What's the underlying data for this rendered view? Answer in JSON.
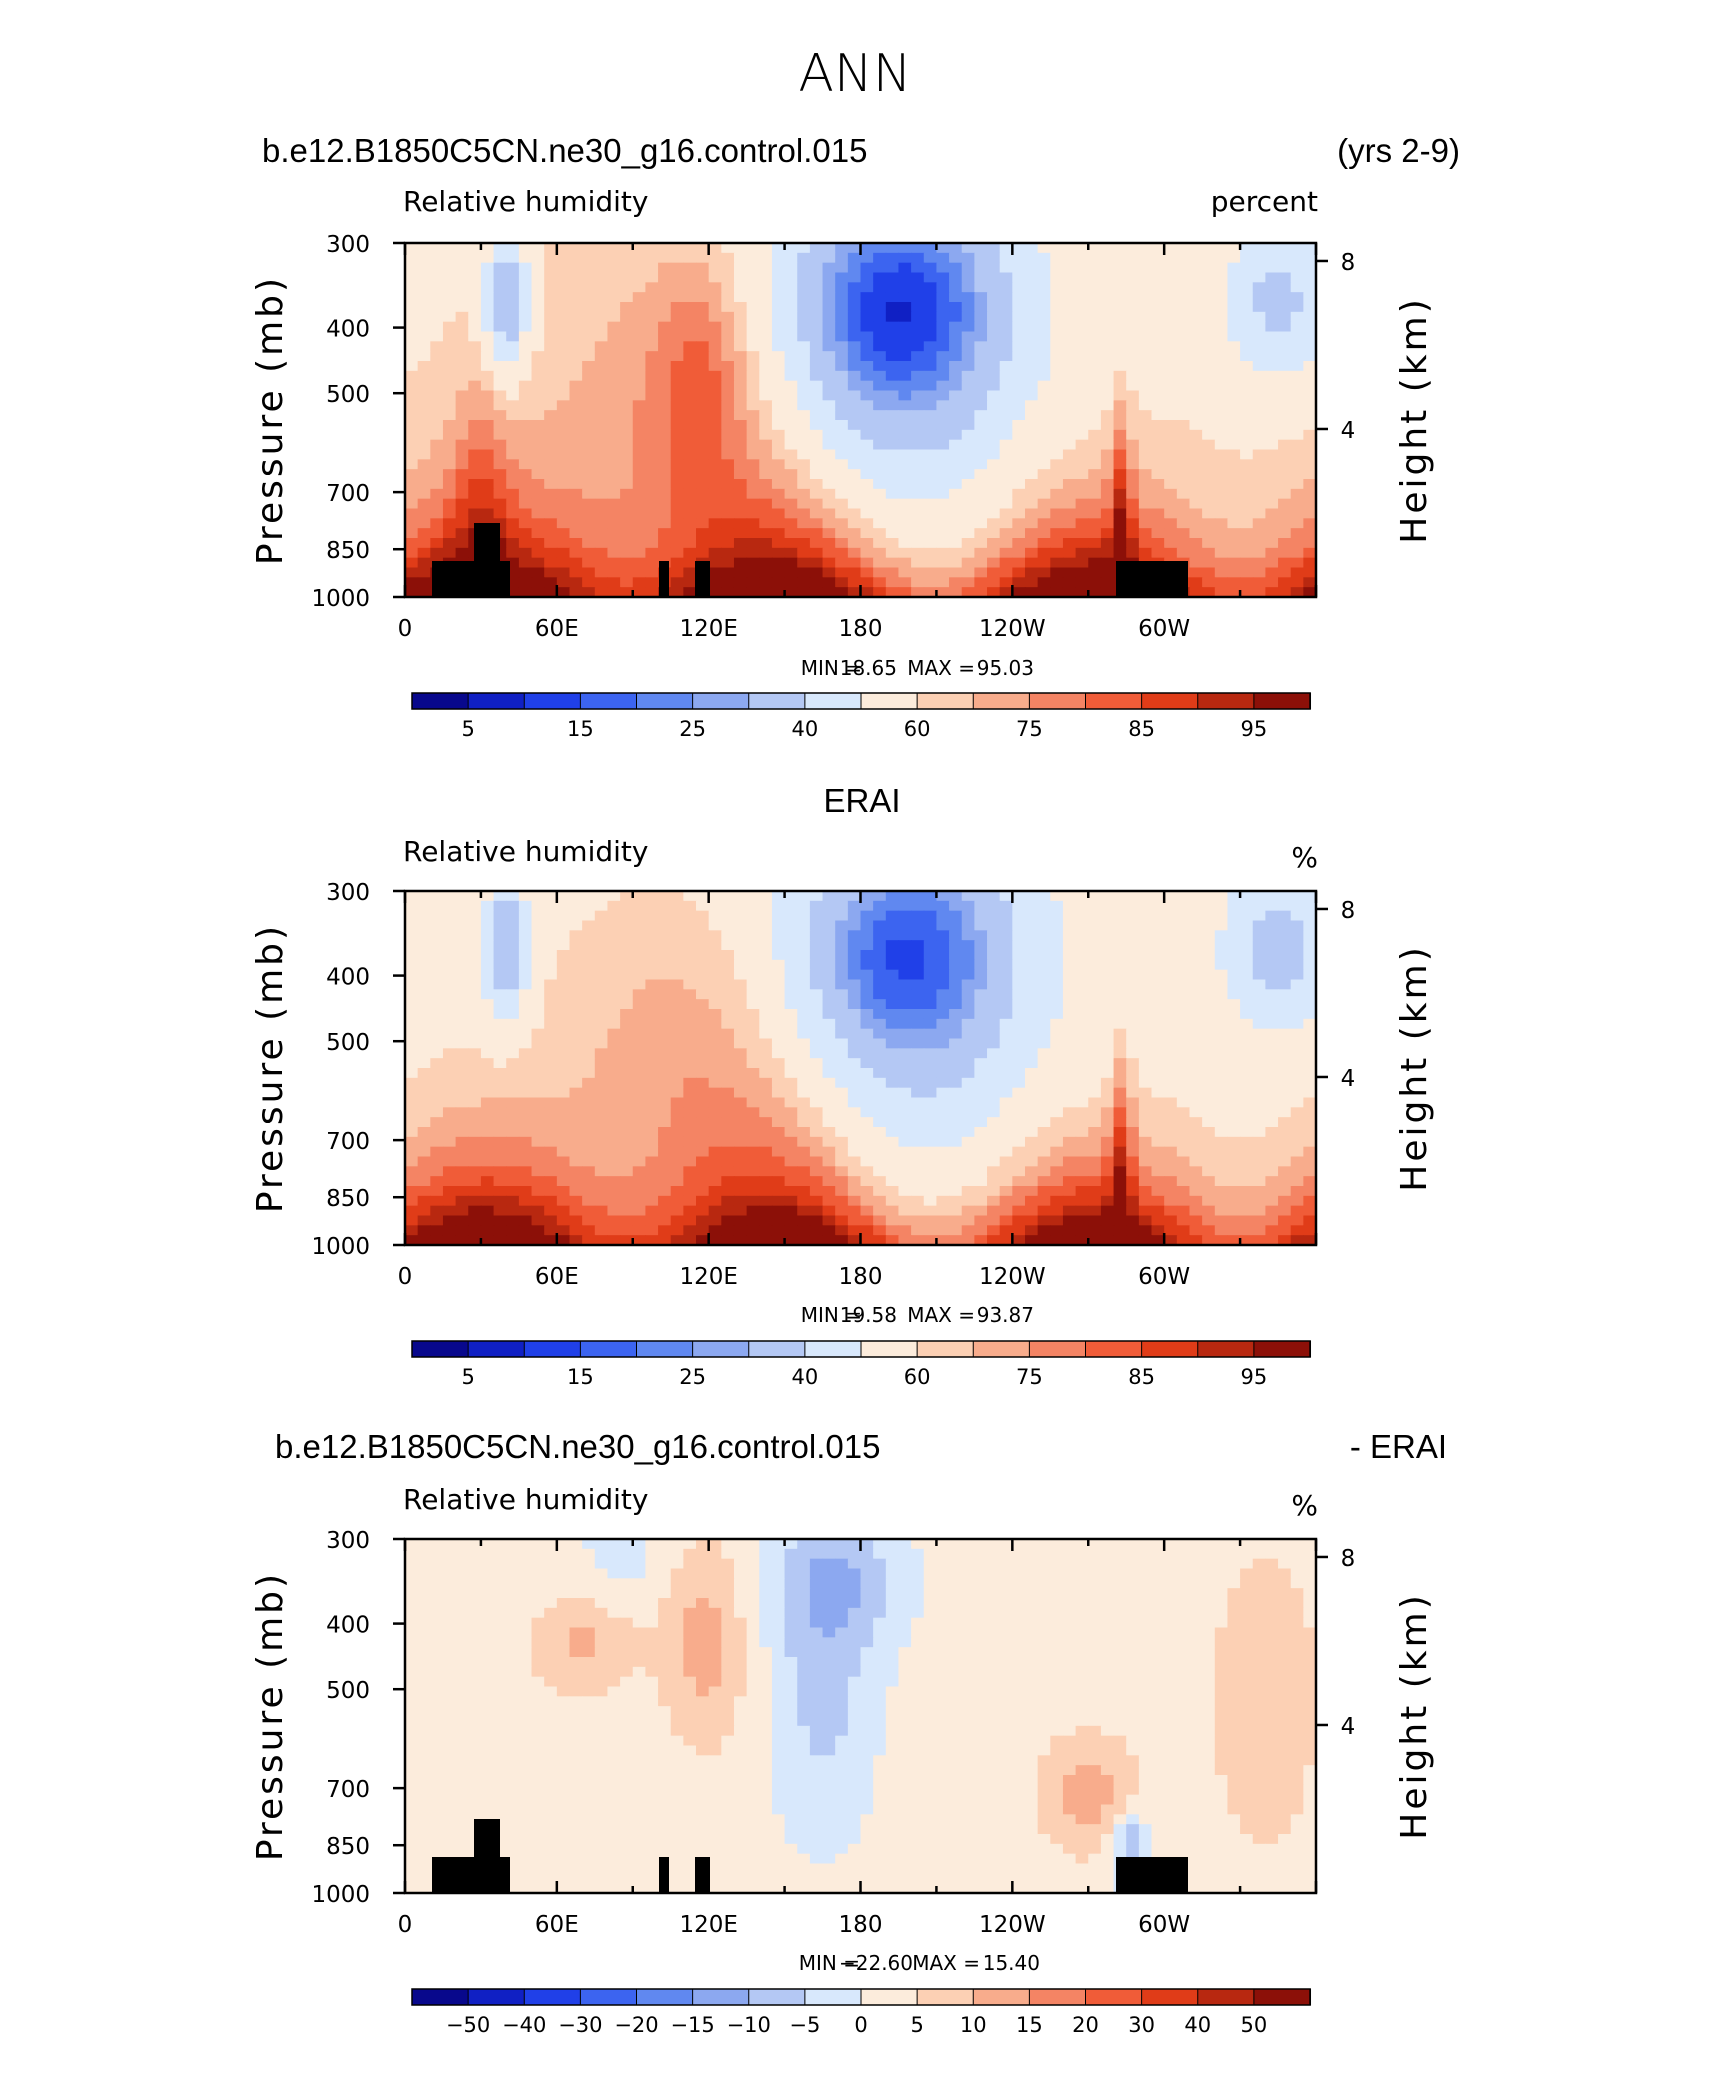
{
  "figure": {
    "title": "ANN"
  },
  "chart_data": [
    {
      "type": "heatmap",
      "title_left": "b.e12.B1850C5CN.ne30_g16.control.015",
      "title_right": "(yrs 2-9)",
      "variable": "Relative humidity",
      "units": "percent",
      "ylabel": "Pressure (mb)",
      "ylabel_right": "Height (km)",
      "x_ticks": [
        "0",
        "60E",
        "120E",
        "180",
        "120W",
        "60W"
      ],
      "y_ticks": [
        "300",
        "400",
        "500",
        "700",
        "850",
        "1000"
      ],
      "y_right_ticks": [
        "8",
        "4"
      ],
      "xlim_deg": [
        0,
        360
      ],
      "ylim_mb": [
        1000,
        300
      ],
      "log_pressure_axis": true,
      "min_label": "MIN =",
      "min_value": "18.65",
      "max_label": "MAX =",
      "max_value": "95.03",
      "colorbar_ticks": [
        "5",
        "15",
        "25",
        "40",
        "60",
        "75",
        "85",
        "95"
      ],
      "colorbar_levels": [
        5,
        10,
        15,
        20,
        25,
        30,
        40,
        50,
        60,
        65,
        70,
        75,
        80,
        85,
        90,
        95
      ],
      "field": "model",
      "terrain_mask": true
    },
    {
      "type": "heatmap",
      "title_center": "ERAI",
      "variable": "Relative humidity",
      "units": "%",
      "ylabel": "Pressure (mb)",
      "ylabel_right": "Height (km)",
      "x_ticks": [
        "0",
        "60E",
        "120E",
        "180",
        "120W",
        "60W"
      ],
      "y_ticks": [
        "300",
        "400",
        "500",
        "700",
        "850",
        "1000"
      ],
      "y_right_ticks": [
        "8",
        "4"
      ],
      "xlim_deg": [
        0,
        360
      ],
      "ylim_mb": [
        1000,
        300
      ],
      "log_pressure_axis": true,
      "min_label": "MIN =",
      "min_value": "19.58",
      "max_label": "MAX =",
      "max_value": "93.87",
      "colorbar_ticks": [
        "5",
        "15",
        "25",
        "40",
        "60",
        "75",
        "85",
        "95"
      ],
      "colorbar_levels": [
        5,
        10,
        15,
        20,
        25,
        30,
        40,
        50,
        60,
        65,
        70,
        75,
        80,
        85,
        90,
        95
      ],
      "field": "obs",
      "terrain_mask": false
    },
    {
      "type": "heatmap",
      "title_left": "b.e12.B1850C5CN.ne30_g16.control.015",
      "title_right": "- ERAI",
      "variable": "Relative humidity",
      "units": "%",
      "ylabel": "Pressure (mb)",
      "ylabel_right": "Height (km)",
      "x_ticks": [
        "0",
        "60E",
        "120E",
        "180",
        "120W",
        "60W"
      ],
      "y_ticks": [
        "300",
        "400",
        "500",
        "700",
        "850",
        "1000"
      ],
      "y_right_ticks": [
        "8",
        "4"
      ],
      "xlim_deg": [
        0,
        360
      ],
      "ylim_mb": [
        1000,
        300
      ],
      "log_pressure_axis": true,
      "min_label": "MIN =",
      "min_value": "−22.60",
      "max_label": "MAX =",
      "max_value": "15.40",
      "colorbar_ticks": [
        "−50",
        "−40",
        "−30",
        "−20",
        "−15",
        "−10",
        "−5",
        "0",
        "5",
        "10",
        "15",
        "20",
        "30",
        "40",
        "50"
      ],
      "colorbar_levels": [
        -50,
        -40,
        -30,
        -20,
        -15,
        -10,
        -5,
        0,
        5,
        10,
        15,
        20,
        30,
        40,
        50
      ],
      "field": "diff",
      "terrain_mask": true
    }
  ],
  "palette": [
    "#08088c",
    "#1020c4",
    "#2040e8",
    "#3c64f0",
    "#6088f0",
    "#8ca8f0",
    "#b4c8f4",
    "#d8e8fc",
    "#fcecdc",
    "#fcd0b4",
    "#f8ac8c",
    "#f48464",
    "#f05c38",
    "#e03c18",
    "#b82810",
    "#8c1008"
  ]
}
